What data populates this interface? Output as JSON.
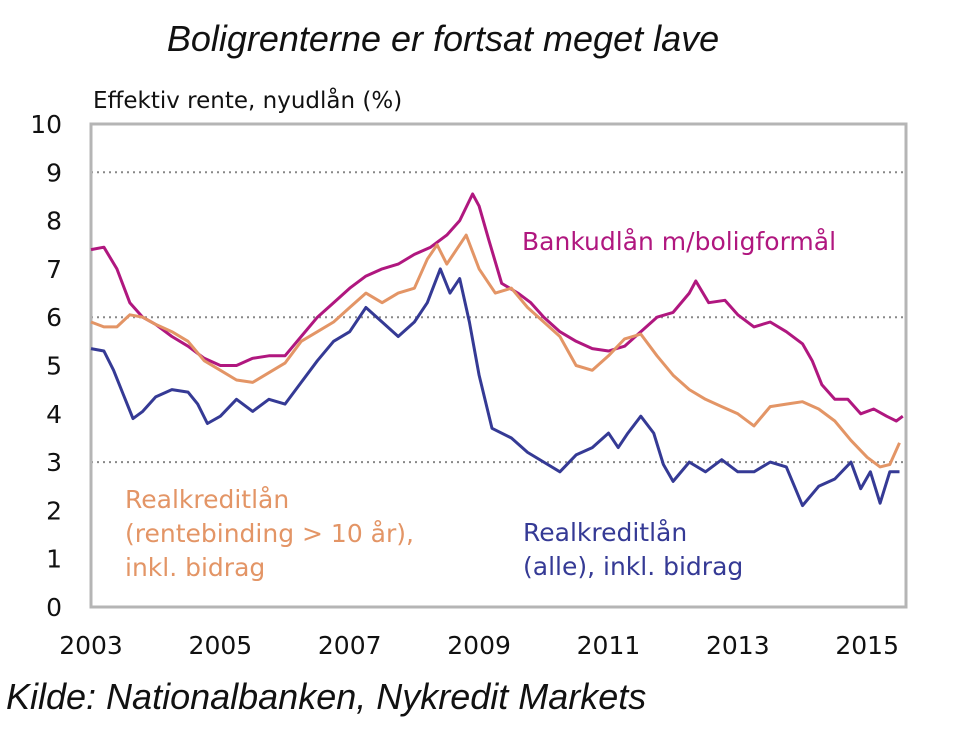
{
  "title": "Boligrenterne er fortsat meget lave",
  "source": "Kilde: Nationalbanken, Nykredit Markets",
  "chart_data": {
    "type": "line",
    "ylabel": "Effektiv rente, nyudlån (%)",
    "xlabel": "",
    "xlim": [
      2003.0,
      2015.6
    ],
    "ylim": [
      0,
      10
    ],
    "x_ticks": [
      "2003",
      "2005",
      "2007",
      "2009",
      "2011",
      "2013",
      "2015"
    ],
    "y_ticks": [
      "0",
      "1",
      "2",
      "3",
      "4",
      "5",
      "6",
      "7",
      "8",
      "9",
      "10"
    ],
    "grid": {
      "y_dotted_at": [
        3,
        6,
        9
      ]
    },
    "legend": "inline labels",
    "series": [
      {
        "name": "Bankudlån m/boligformål",
        "label_lines": [
          "Bankudlån m/boligformål"
        ],
        "color": "#b0177f",
        "points": [
          [
            2003.0,
            7.4
          ],
          [
            2003.2,
            7.45
          ],
          [
            2003.4,
            7.0
          ],
          [
            2003.6,
            6.3
          ],
          [
            2003.8,
            6.0
          ],
          [
            2004.0,
            5.85
          ],
          [
            2004.25,
            5.6
          ],
          [
            2004.5,
            5.4
          ],
          [
            2004.75,
            5.15
          ],
          [
            2005.0,
            5.0
          ],
          [
            2005.25,
            5.0
          ],
          [
            2005.5,
            5.15
          ],
          [
            2005.75,
            5.2
          ],
          [
            2006.0,
            5.2
          ],
          [
            2006.25,
            5.6
          ],
          [
            2006.5,
            6.0
          ],
          [
            2006.75,
            6.3
          ],
          [
            2007.0,
            6.6
          ],
          [
            2007.25,
            6.85
          ],
          [
            2007.5,
            7.0
          ],
          [
            2007.75,
            7.1
          ],
          [
            2008.0,
            7.3
          ],
          [
            2008.25,
            7.45
          ],
          [
            2008.5,
            7.7
          ],
          [
            2008.7,
            8.0
          ],
          [
            2008.9,
            8.55
          ],
          [
            2009.0,
            8.3
          ],
          [
            2009.15,
            7.6
          ],
          [
            2009.35,
            6.7
          ],
          [
            2009.6,
            6.5
          ],
          [
            2009.8,
            6.3
          ],
          [
            2010.0,
            6.0
          ],
          [
            2010.25,
            5.7
          ],
          [
            2010.5,
            5.5
          ],
          [
            2010.75,
            5.35
          ],
          [
            2011.0,
            5.3
          ],
          [
            2011.25,
            5.4
          ],
          [
            2011.5,
            5.7
          ],
          [
            2011.75,
            6.0
          ],
          [
            2012.0,
            6.1
          ],
          [
            2012.25,
            6.5
          ],
          [
            2012.35,
            6.75
          ],
          [
            2012.55,
            6.3
          ],
          [
            2012.8,
            6.35
          ],
          [
            2013.0,
            6.05
          ],
          [
            2013.25,
            5.8
          ],
          [
            2013.5,
            5.9
          ],
          [
            2013.75,
            5.7
          ],
          [
            2014.0,
            5.45
          ],
          [
            2014.15,
            5.1
          ],
          [
            2014.3,
            4.6
          ],
          [
            2014.5,
            4.3
          ],
          [
            2014.7,
            4.3
          ],
          [
            2014.9,
            4.0
          ],
          [
            2015.1,
            4.1
          ],
          [
            2015.3,
            3.95
          ],
          [
            2015.45,
            3.85
          ],
          [
            2015.55,
            3.95
          ]
        ]
      },
      {
        "name": "Realkreditlån (rentebinding > 10 år), inkl. bidrag",
        "label_lines": [
          "Realkreditlån",
          "(rentebinding > 10 år),",
          "inkl. bidrag"
        ],
        "color": "#e39566",
        "points": [
          [
            2003.0,
            5.9
          ],
          [
            2003.2,
            5.8
          ],
          [
            2003.4,
            5.8
          ],
          [
            2003.6,
            6.05
          ],
          [
            2003.8,
            6.0
          ],
          [
            2004.0,
            5.85
          ],
          [
            2004.25,
            5.7
          ],
          [
            2004.5,
            5.5
          ],
          [
            2004.75,
            5.1
          ],
          [
            2005.0,
            4.9
          ],
          [
            2005.25,
            4.7
          ],
          [
            2005.5,
            4.65
          ],
          [
            2005.75,
            4.85
          ],
          [
            2006.0,
            5.05
          ],
          [
            2006.25,
            5.5
          ],
          [
            2006.5,
            5.7
          ],
          [
            2006.75,
            5.9
          ],
          [
            2007.0,
            6.2
          ],
          [
            2007.25,
            6.5
          ],
          [
            2007.5,
            6.3
          ],
          [
            2007.75,
            6.5
          ],
          [
            2008.0,
            6.6
          ],
          [
            2008.2,
            7.2
          ],
          [
            2008.35,
            7.5
          ],
          [
            2008.5,
            7.1
          ],
          [
            2008.65,
            7.4
          ],
          [
            2008.8,
            7.7
          ],
          [
            2009.0,
            7.0
          ],
          [
            2009.25,
            6.5
          ],
          [
            2009.5,
            6.6
          ],
          [
            2009.75,
            6.2
          ],
          [
            2010.0,
            5.9
          ],
          [
            2010.25,
            5.6
          ],
          [
            2010.5,
            5.0
          ],
          [
            2010.75,
            4.9
          ],
          [
            2011.0,
            5.2
          ],
          [
            2011.25,
            5.55
          ],
          [
            2011.5,
            5.65
          ],
          [
            2011.75,
            5.2
          ],
          [
            2012.0,
            4.8
          ],
          [
            2012.25,
            4.5
          ],
          [
            2012.5,
            4.3
          ],
          [
            2012.75,
            4.15
          ],
          [
            2013.0,
            4.0
          ],
          [
            2013.25,
            3.75
          ],
          [
            2013.5,
            4.15
          ],
          [
            2013.75,
            4.2
          ],
          [
            2014.0,
            4.25
          ],
          [
            2014.25,
            4.1
          ],
          [
            2014.5,
            3.85
          ],
          [
            2014.75,
            3.45
          ],
          [
            2015.0,
            3.1
          ],
          [
            2015.2,
            2.9
          ],
          [
            2015.35,
            2.95
          ],
          [
            2015.5,
            3.4
          ]
        ]
      },
      {
        "name": "Realkreditlån (alle), inkl. bidrag",
        "label_lines": [
          "Realkreditlån",
          "(alle), inkl. bidrag"
        ],
        "color": "#353a95",
        "points": [
          [
            2003.0,
            5.35
          ],
          [
            2003.2,
            5.3
          ],
          [
            2003.35,
            4.9
          ],
          [
            2003.5,
            4.4
          ],
          [
            2003.65,
            3.9
          ],
          [
            2003.8,
            4.05
          ],
          [
            2004.0,
            4.35
          ],
          [
            2004.25,
            4.5
          ],
          [
            2004.5,
            4.45
          ],
          [
            2004.65,
            4.2
          ],
          [
            2004.8,
            3.8
          ],
          [
            2005.0,
            3.95
          ],
          [
            2005.25,
            4.3
          ],
          [
            2005.5,
            4.05
          ],
          [
            2005.75,
            4.3
          ],
          [
            2006.0,
            4.2
          ],
          [
            2006.25,
            4.65
          ],
          [
            2006.5,
            5.1
          ],
          [
            2006.75,
            5.5
          ],
          [
            2007.0,
            5.7
          ],
          [
            2007.25,
            6.2
          ],
          [
            2007.5,
            5.9
          ],
          [
            2007.75,
            5.6
          ],
          [
            2008.0,
            5.9
          ],
          [
            2008.2,
            6.3
          ],
          [
            2008.4,
            7.0
          ],
          [
            2008.55,
            6.5
          ],
          [
            2008.7,
            6.8
          ],
          [
            2008.85,
            5.9
          ],
          [
            2009.0,
            4.8
          ],
          [
            2009.2,
            3.7
          ],
          [
            2009.5,
            3.5
          ],
          [
            2009.75,
            3.2
          ],
          [
            2010.0,
            3.0
          ],
          [
            2010.25,
            2.8
          ],
          [
            2010.5,
            3.15
          ],
          [
            2010.75,
            3.3
          ],
          [
            2011.0,
            3.6
          ],
          [
            2011.15,
            3.3
          ],
          [
            2011.3,
            3.6
          ],
          [
            2011.5,
            3.95
          ],
          [
            2011.7,
            3.6
          ],
          [
            2011.85,
            2.95
          ],
          [
            2012.0,
            2.6
          ],
          [
            2012.25,
            3.0
          ],
          [
            2012.5,
            2.8
          ],
          [
            2012.75,
            3.05
          ],
          [
            2013.0,
            2.8
          ],
          [
            2013.25,
            2.8
          ],
          [
            2013.5,
            3.0
          ],
          [
            2013.75,
            2.9
          ],
          [
            2014.0,
            2.1
          ],
          [
            2014.25,
            2.5
          ],
          [
            2014.5,
            2.65
          ],
          [
            2014.75,
            3.0
          ],
          [
            2014.9,
            2.45
          ],
          [
            2015.05,
            2.8
          ],
          [
            2015.2,
            2.15
          ],
          [
            2015.35,
            2.8
          ],
          [
            2015.5,
            2.8
          ]
        ]
      }
    ]
  }
}
